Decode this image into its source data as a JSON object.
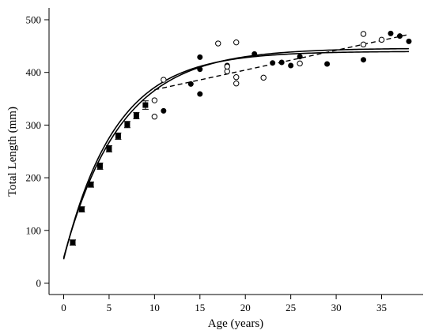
{
  "chart_data": {
    "type": "scatter",
    "xlabel": "Age (years)",
    "ylabel": "Total Length (mm)",
    "xlim": [
      0,
      39
    ],
    "ylim": [
      0,
      520
    ],
    "x_ticks": [
      0,
      5,
      10,
      15,
      20,
      25,
      30,
      35
    ],
    "y_ticks": [
      0,
      100,
      200,
      300,
      400,
      500
    ],
    "grid": false,
    "series": [
      {
        "marker": "filled-square-with-errorbars",
        "points": [
          {
            "x": 1,
            "y": 77,
            "err": 5
          },
          {
            "x": 2,
            "y": 140,
            "err": 5
          },
          {
            "x": 3,
            "y": 187,
            "err": 5
          },
          {
            "x": 4,
            "y": 222,
            "err": 6
          },
          {
            "x": 5,
            "y": 255,
            "err": 6
          },
          {
            "x": 6,
            "y": 279,
            "err": 6
          },
          {
            "x": 7,
            "y": 301,
            "err": 6
          },
          {
            "x": 8,
            "y": 318,
            "err": 6
          },
          {
            "x": 9,
            "y": 338,
            "err": 8
          }
        ]
      },
      {
        "marker": "filled-circle",
        "points": [
          {
            "x": 11,
            "y": 327
          },
          {
            "x": 14,
            "y": 378
          },
          {
            "x": 15,
            "y": 429
          },
          {
            "x": 15,
            "y": 406
          },
          {
            "x": 15,
            "y": 359
          },
          {
            "x": 18,
            "y": 413
          },
          {
            "x": 21,
            "y": 435
          },
          {
            "x": 23,
            "y": 418
          },
          {
            "x": 24,
            "y": 419
          },
          {
            "x": 25,
            "y": 413
          },
          {
            "x": 26,
            "y": 430
          },
          {
            "x": 29,
            "y": 416
          },
          {
            "x": 33,
            "y": 424
          },
          {
            "x": 36,
            "y": 474
          },
          {
            "x": 37,
            "y": 469
          },
          {
            "x": 38,
            "y": 459
          }
        ]
      },
      {
        "marker": "open-circle",
        "points": [
          {
            "x": 10,
            "y": 316
          },
          {
            "x": 10,
            "y": 347
          },
          {
            "x": 11,
            "y": 386
          },
          {
            "x": 17,
            "y": 455
          },
          {
            "x": 18,
            "y": 402
          },
          {
            "x": 18,
            "y": 411
          },
          {
            "x": 19,
            "y": 457
          },
          {
            "x": 19,
            "y": 391
          },
          {
            "x": 19,
            "y": 379
          },
          {
            "x": 22,
            "y": 390
          },
          {
            "x": 26,
            "y": 417
          },
          {
            "x": 33,
            "y": 473
          },
          {
            "x": 33,
            "y": 453
          },
          {
            "x": 35,
            "y": 462
          }
        ]
      }
    ],
    "curves": [
      {
        "style": "solid",
        "model": "von-bertalanffy",
        "Linf": 446,
        "k": 0.16,
        "t0": -0.71
      },
      {
        "style": "solid",
        "model": "von-bertalanffy",
        "Linf": 440,
        "k": 0.175,
        "t0": -0.62
      },
      {
        "style": "dashed",
        "model": "linear",
        "x": [
          10,
          38
        ],
        "y": [
          367,
          472
        ]
      }
    ]
  }
}
